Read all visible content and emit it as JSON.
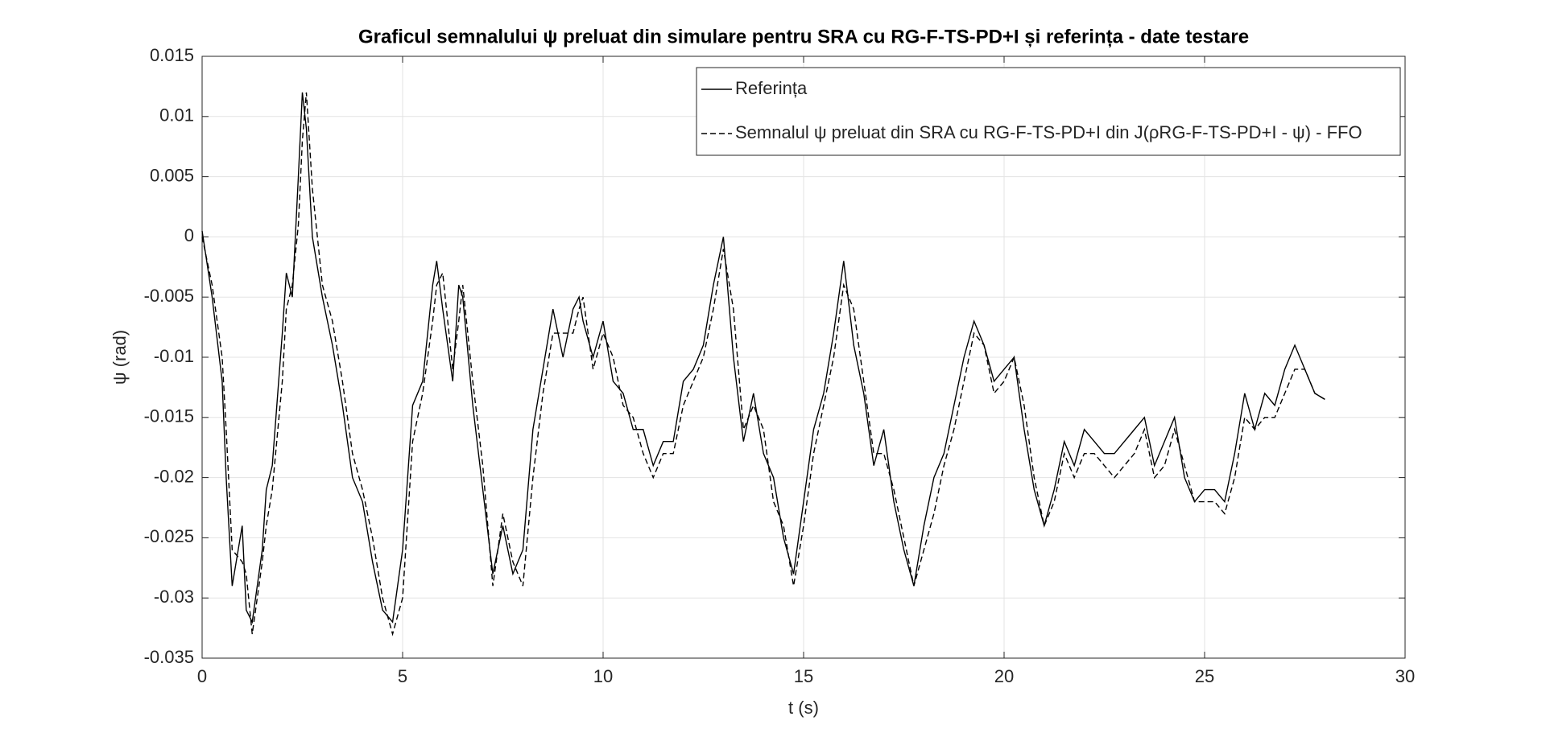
{
  "chart_data": {
    "type": "line",
    "title": "Graficul semnalului ψ preluat din simulare pentru SRA cu RG-F-TS-PD+I și referința  - date testare",
    "xlabel": "t (s)",
    "ylabel": "ψ (rad)",
    "xlim": [
      0,
      30
    ],
    "xticks": [
      0,
      5,
      10,
      15,
      20,
      25,
      30
    ],
    "ylim": [
      -0.035,
      0.015
    ],
    "yticks": [
      -0.035,
      -0.03,
      -0.025,
      -0.02,
      -0.015,
      -0.01,
      -0.005,
      0,
      0.005,
      0.01,
      0.015
    ],
    "grid": true,
    "legend_position": "upper-right",
    "x": [
      0,
      0.25,
      0.5,
      0.6,
      0.75,
      1,
      1.1,
      1.25,
      1.5,
      1.6,
      1.75,
      2,
      2.1,
      2.25,
      2.4,
      2.5,
      2.6,
      2.75,
      3,
      3.25,
      3.5,
      3.75,
      4,
      4.25,
      4.5,
      4.75,
      5,
      5.25,
      5.5,
      5.75,
      5.85,
      6,
      6.25,
      6.4,
      6.5,
      6.75,
      7,
      7.25,
      7.5,
      7.75,
      8,
      8.25,
      8.5,
      8.75,
      9,
      9.25,
      9.4,
      9.5,
      9.75,
      10,
      10.25,
      10.5,
      10.75,
      11,
      11.25,
      11.5,
      11.75,
      12,
      12.25,
      12.5,
      12.75,
      13,
      13.25,
      13.5,
      13.75,
      14,
      14.25,
      14.5,
      14.75,
      15,
      15.25,
      15.5,
      15.75,
      16,
      16.25,
      16.5,
      16.75,
      17,
      17.25,
      17.5,
      17.75,
      18,
      18.25,
      18.5,
      18.75,
      19,
      19.25,
      19.5,
      19.75,
      20,
      20.25,
      20.5,
      20.75,
      21,
      21.25,
      21.5,
      21.75,
      22,
      22.25,
      22.5,
      22.75,
      23,
      23.25,
      23.5,
      23.75,
      24,
      24.25,
      24.5,
      24.75,
      25,
      25.25,
      25.5,
      25.75,
      26,
      26.25,
      26.5,
      26.75,
      27,
      27.25,
      27.5,
      27.75,
      28
    ],
    "series": [
      {
        "name": "Referința",
        "color": "#000000",
        "dash": "solid",
        "values": [
          0.0005,
          -0.005,
          -0.012,
          -0.02,
          -0.029,
          -0.024,
          -0.031,
          -0.032,
          -0.026,
          -0.021,
          -0.019,
          -0.008,
          -0.003,
          -0.005,
          0.005,
          0.012,
          0.009,
          0.0,
          -0.005,
          -0.009,
          -0.014,
          -0.02,
          -0.022,
          -0.027,
          -0.031,
          -0.032,
          -0.026,
          -0.014,
          -0.012,
          -0.004,
          -0.002,
          -0.006,
          -0.012,
          -0.004,
          -0.005,
          -0.014,
          -0.021,
          -0.028,
          -0.024,
          -0.028,
          -0.026,
          -0.016,
          -0.011,
          -0.006,
          -0.01,
          -0.006,
          -0.005,
          -0.007,
          -0.01,
          -0.007,
          -0.012,
          -0.013,
          -0.016,
          -0.016,
          -0.019,
          -0.017,
          -0.017,
          -0.012,
          -0.011,
          -0.009,
          -0.004,
          0.0,
          -0.01,
          -0.017,
          -0.013,
          -0.018,
          -0.02,
          -0.025,
          -0.028,
          -0.022,
          -0.016,
          -0.013,
          -0.008,
          -0.002,
          -0.009,
          -0.013,
          -0.019,
          -0.016,
          -0.022,
          -0.026,
          -0.029,
          -0.024,
          -0.02,
          -0.018,
          -0.014,
          -0.01,
          -0.007,
          -0.009,
          -0.012,
          -0.011,
          -0.01,
          -0.016,
          -0.021,
          -0.024,
          -0.021,
          -0.017,
          -0.019,
          -0.016,
          -0.017,
          -0.018,
          -0.018,
          -0.017,
          -0.016,
          -0.015,
          -0.019,
          -0.017,
          -0.015,
          -0.02,
          -0.022,
          -0.021,
          -0.021,
          -0.022,
          -0.018,
          -0.013,
          -0.016,
          -0.013,
          -0.014,
          -0.011,
          -0.009,
          -0.011,
          -0.013,
          -0.0135
        ]
      },
      {
        "name": "Semnalul ψ preluat din SRA cu RG-F-TS-PD+I din J(ρRG-F-TS-PD+I - ψ) - FFO",
        "color": "#000000",
        "dash": "dashed",
        "values": [
          0.0,
          -0.004,
          -0.01,
          -0.016,
          -0.026,
          -0.027,
          -0.028,
          -0.033,
          -0.027,
          -0.024,
          -0.021,
          -0.012,
          -0.006,
          -0.004,
          0.001,
          0.008,
          0.012,
          0.004,
          -0.004,
          -0.007,
          -0.012,
          -0.018,
          -0.021,
          -0.025,
          -0.03,
          -0.033,
          -0.03,
          -0.017,
          -0.013,
          -0.007,
          -0.004,
          -0.003,
          -0.011,
          -0.007,
          -0.004,
          -0.012,
          -0.019,
          -0.029,
          -0.023,
          -0.027,
          -0.029,
          -0.02,
          -0.013,
          -0.008,
          -0.008,
          -0.008,
          -0.006,
          -0.005,
          -0.011,
          -0.008,
          -0.01,
          -0.014,
          -0.015,
          -0.018,
          -0.02,
          -0.018,
          -0.018,
          -0.014,
          -0.012,
          -0.01,
          -0.006,
          -0.001,
          -0.006,
          -0.016,
          -0.014,
          -0.016,
          -0.022,
          -0.024,
          -0.029,
          -0.024,
          -0.018,
          -0.014,
          -0.01,
          -0.004,
          -0.006,
          -0.012,
          -0.018,
          -0.018,
          -0.021,
          -0.025,
          -0.029,
          -0.026,
          -0.023,
          -0.019,
          -0.016,
          -0.012,
          -0.008,
          -0.009,
          -0.013,
          -0.012,
          -0.01,
          -0.014,
          -0.02,
          -0.024,
          -0.022,
          -0.018,
          -0.02,
          -0.018,
          -0.018,
          -0.019,
          -0.02,
          -0.019,
          -0.018,
          -0.016,
          -0.02,
          -0.019,
          -0.016,
          -0.019,
          -0.022,
          -0.022,
          -0.022,
          -0.023,
          -0.02,
          -0.015,
          -0.016,
          -0.015,
          -0.015,
          -0.013,
          -0.011,
          -0.011,
          -0.013,
          -0.0135
        ]
      }
    ]
  }
}
